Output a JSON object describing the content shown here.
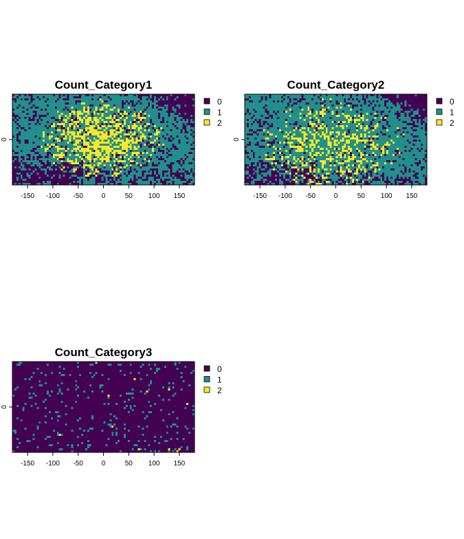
{
  "colors": {
    "0": "#440154",
    "1": "#21908C",
    "2": "#FDE725",
    "frame": "#000000"
  },
  "chart_data": [
    {
      "type": "heatmap",
      "title": "Count_Category1",
      "xlabel": "",
      "ylabel": "",
      "xticks": [
        "-150",
        "-100",
        "-50",
        "0",
        "50",
        "100",
        "150"
      ],
      "xtick_values": [
        -150,
        -100,
        -50,
        0,
        50,
        100,
        150
      ],
      "yticks": [
        "0"
      ],
      "xlim": [
        -180,
        180
      ],
      "ylim": [
        -90,
        90
      ],
      "legend": {
        "position": "right",
        "entries": [
          "0",
          "1",
          "2"
        ]
      },
      "categories": [
        0,
        1,
        2
      ],
      "pattern": {
        "seed": 11,
        "cx": -5,
        "cy": 0,
        "rx": 130,
        "ry": 80,
        "peak": 0.62,
        "low_edge": 0.25,
        "corner_dark": "top-right",
        "bottom_dark": 0.55
      },
      "grid": false
    },
    {
      "type": "heatmap",
      "title": "Count_Category2",
      "xlabel": "",
      "ylabel": "",
      "xticks": [
        "-150",
        "-100",
        "-50",
        "0",
        "50",
        "100",
        "150"
      ],
      "xtick_values": [
        -150,
        -100,
        -50,
        0,
        50,
        100,
        150
      ],
      "yticks": [
        "0"
      ],
      "xlim": [
        -180,
        180
      ],
      "ylim": [
        -90,
        90
      ],
      "legend": {
        "position": "right",
        "entries": [
          "0",
          "1",
          "2"
        ]
      },
      "categories": [
        0,
        1,
        2
      ],
      "pattern": {
        "seed": 23,
        "cx": -10,
        "cy": -10,
        "rx": 150,
        "ry": 95,
        "peak": 0.38,
        "low_edge": 0.2,
        "corner_dark": "top-right",
        "bottom_dark": 0.45
      },
      "grid": false
    },
    {
      "type": "heatmap",
      "title": "Count_Category3",
      "xlabel": "",
      "ylabel": "",
      "xticks": [
        "-150",
        "-100",
        "-50",
        "0",
        "50",
        "100",
        "150"
      ],
      "xtick_values": [
        -150,
        -100,
        -50,
        0,
        50,
        100,
        150
      ],
      "yticks": [
        "0"
      ],
      "xlim": [
        -180,
        180
      ],
      "ylim": [
        -90,
        90
      ],
      "legend": {
        "position": "right",
        "entries": [
          "0",
          "1",
          "2"
        ]
      },
      "categories": [
        0,
        1,
        2
      ],
      "pattern": {
        "seed": 37,
        "sparse": true,
        "p1": 0.07,
        "p2": 0.004
      },
      "grid": false
    }
  ]
}
